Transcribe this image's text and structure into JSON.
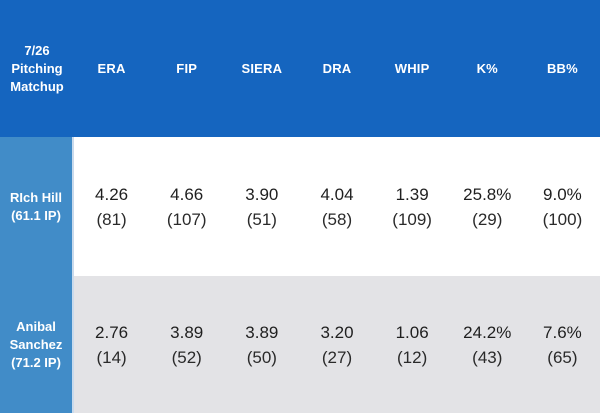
{
  "colors": {
    "header_bg": "#1565BF",
    "label_column_bg": "#418CC8",
    "divider": "#C9DAEC",
    "row1_bg": "#FFFFFF",
    "row2_bg": "#E3E3E6",
    "header_text": "#FFFFFF",
    "value_text": "#1F1F1F"
  },
  "table": {
    "corner_label": "7/26\nPitching\nMatchup",
    "columns": [
      "ERA",
      "FIP",
      "SIERA",
      "DRA",
      "WHIP",
      "K%",
      "BB%"
    ],
    "rows": [
      {
        "label": "RIch Hill\n(61.1 IP)",
        "cells": [
          {
            "value": "4.26",
            "rank": "(81)"
          },
          {
            "value": "4.66",
            "rank": "(107)"
          },
          {
            "value": "3.90",
            "rank": "(51)"
          },
          {
            "value": "4.04",
            "rank": "(58)"
          },
          {
            "value": "1.39",
            "rank": "(109)"
          },
          {
            "value": "25.8%",
            "rank": "(29)"
          },
          {
            "value": "9.0%",
            "rank": "(100)"
          }
        ]
      },
      {
        "label": "Anibal\nSanchez\n(71.2 IP)",
        "cells": [
          {
            "value": "2.76",
            "rank": "(14)"
          },
          {
            "value": "3.89",
            "rank": "(52)"
          },
          {
            "value": "3.89",
            "rank": "(50)"
          },
          {
            "value": "3.20",
            "rank": "(27)"
          },
          {
            "value": "1.06",
            "rank": "(12)"
          },
          {
            "value": "24.2%",
            "rank": "(43)"
          },
          {
            "value": "7.6%",
            "rank": "(65)"
          }
        ]
      }
    ]
  },
  "chart_data": {
    "type": "table",
    "title": "7/26 Pitching Matchup",
    "columns": [
      "ERA",
      "FIP",
      "SIERA",
      "DRA",
      "WHIP",
      "K%",
      "BB%"
    ],
    "rows": [
      {
        "pitcher": "RIch Hill",
        "innings": "61.1 IP",
        "ERA": "4.26",
        "ERA_rank": 81,
        "FIP": "4.66",
        "FIP_rank": 107,
        "SIERA": "3.90",
        "SIERA_rank": 51,
        "DRA": "4.04",
        "DRA_rank": 58,
        "WHIP": "1.39",
        "WHIP_rank": 109,
        "K_pct": "25.8%",
        "K_pct_rank": 29,
        "BB_pct": "9.0%",
        "BB_pct_rank": 100
      },
      {
        "pitcher": "Anibal Sanchez",
        "innings": "71.2 IP",
        "ERA": "2.76",
        "ERA_rank": 14,
        "FIP": "3.89",
        "FIP_rank": 52,
        "SIERA": "3.89",
        "SIERA_rank": 50,
        "DRA": "3.20",
        "DRA_rank": 27,
        "WHIP": "1.06",
        "WHIP_rank": 12,
        "K_pct": "24.2%",
        "K_pct_rank": 43,
        "BB_pct": "7.6%",
        "BB_pct_rank": 65
      }
    ]
  }
}
